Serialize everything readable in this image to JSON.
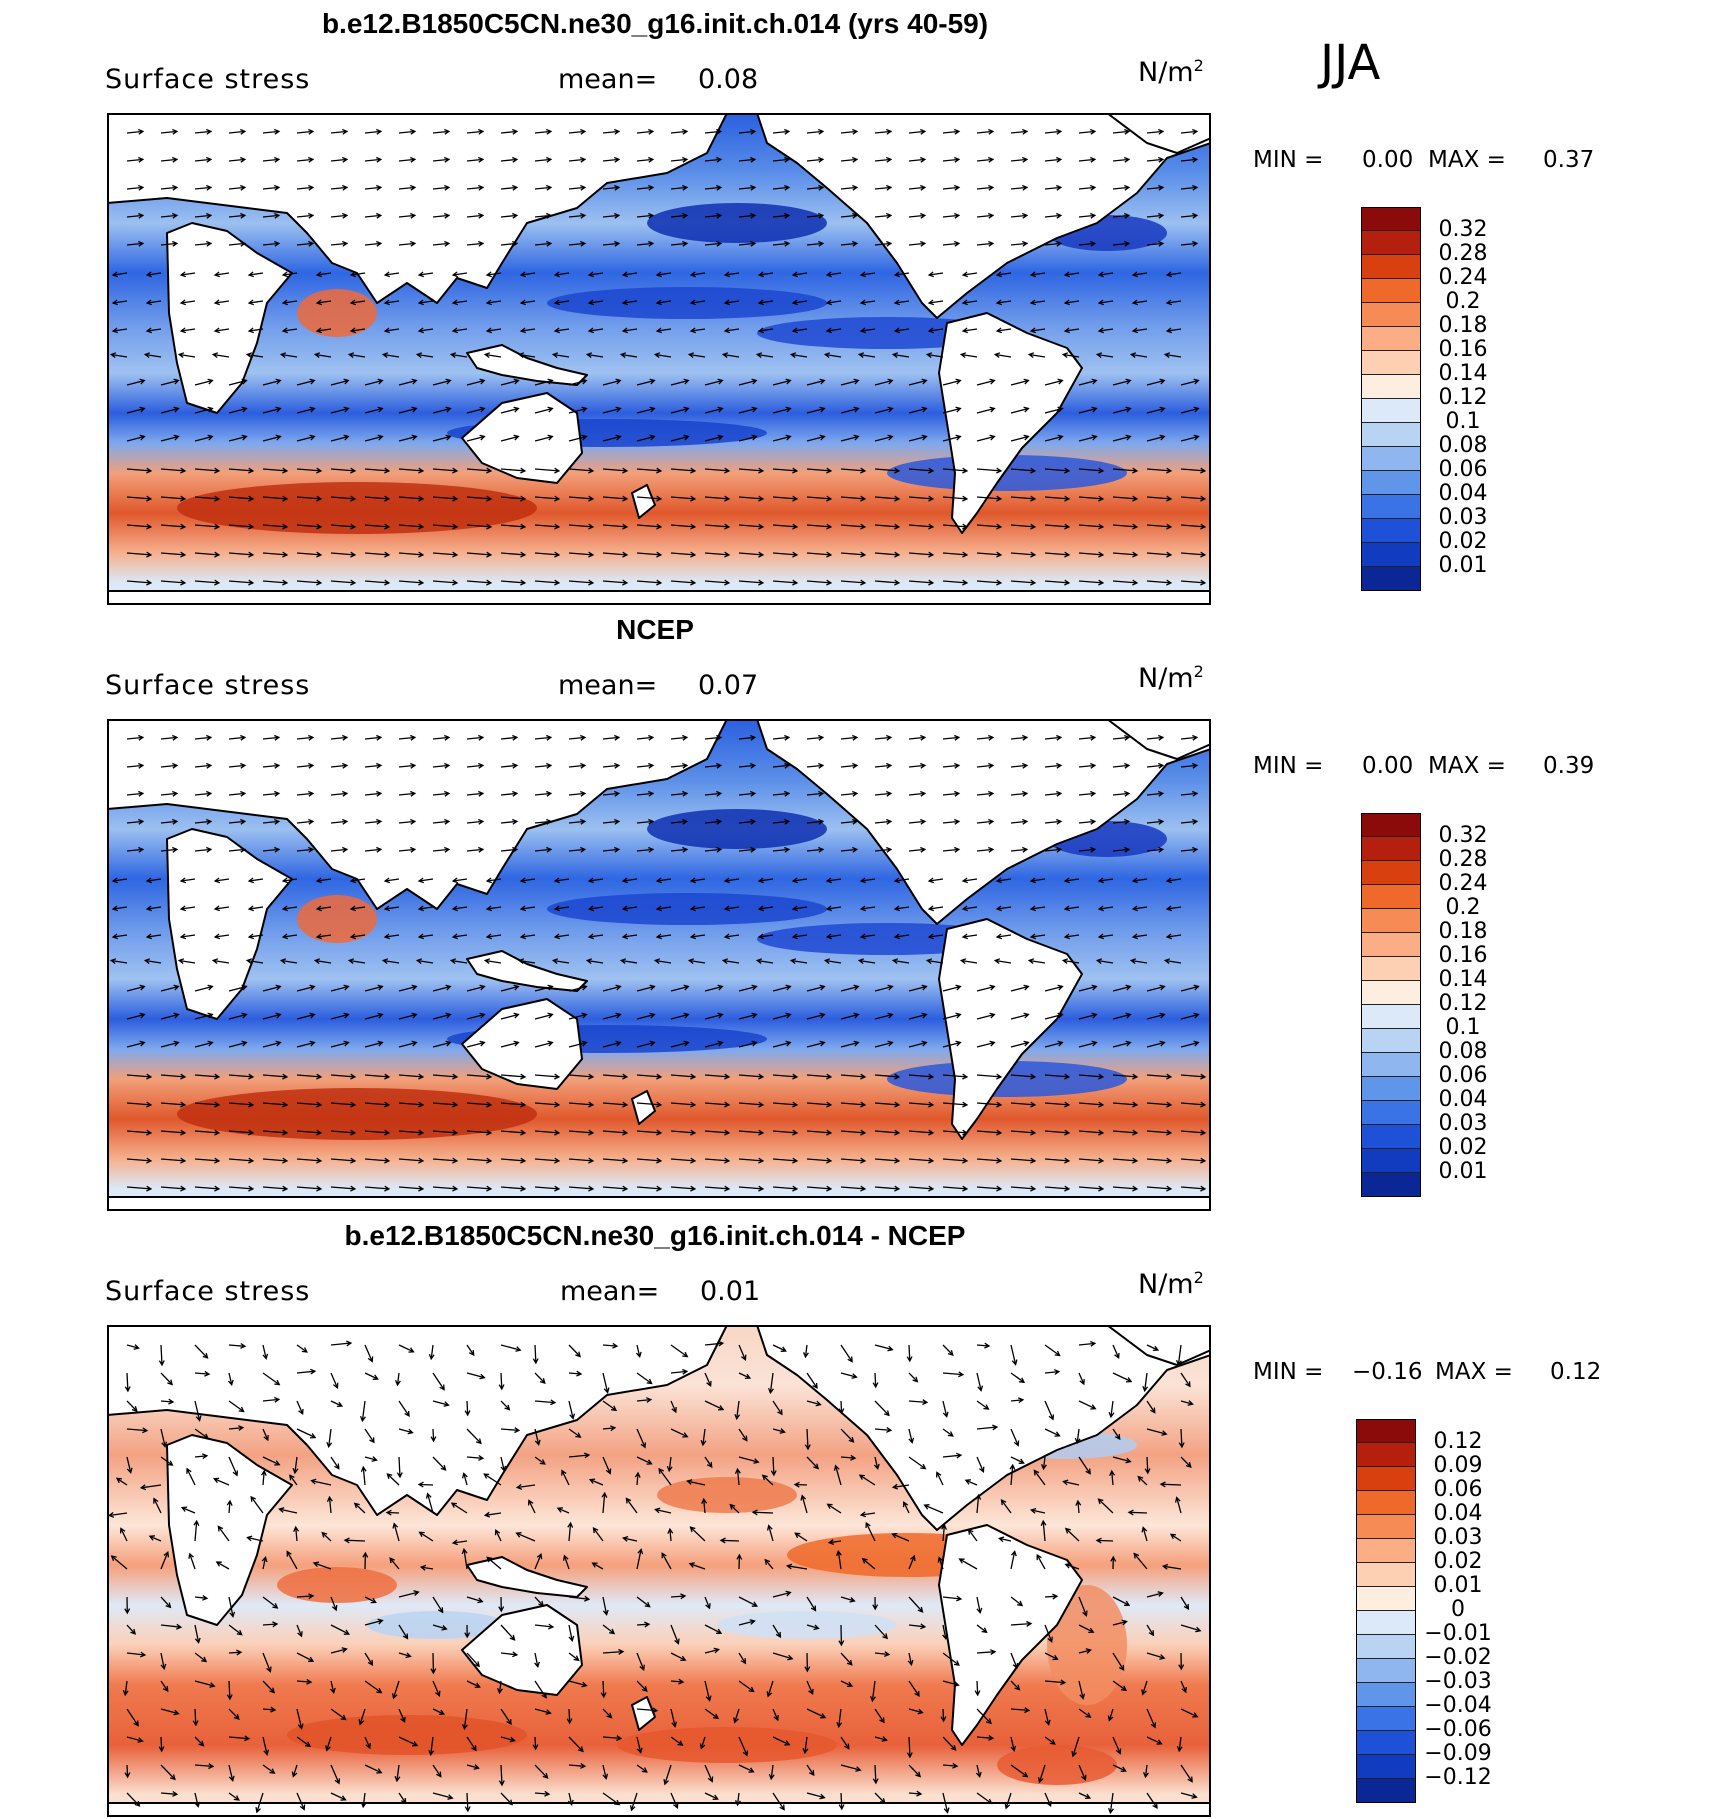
{
  "season": "JJA",
  "panels": [
    {
      "title": "b.e12.B1850C5CN.ne30_g16.init.ch.014 (yrs 40-59)",
      "variable": "Surface stress",
      "mean_label": "mean=",
      "mean_value": "0.08",
      "units": "N/m",
      "units_exp": "2",
      "min_label": "MIN =",
      "min_value": "0.00",
      "max_label": "MAX =",
      "max_value": "0.37",
      "palette": "sequential"
    },
    {
      "title": "NCEP",
      "variable": "Surface stress",
      "mean_label": "mean=",
      "mean_value": "0.07",
      "units": "N/m",
      "units_exp": "2",
      "min_label": "MIN =",
      "min_value": "0.00",
      "max_label": "MAX =",
      "max_value": "0.39",
      "palette": "sequential"
    },
    {
      "title": "b.e12.B1850C5CN.ne30_g16.init.ch.014 - NCEP",
      "variable": "Surface stress",
      "mean_label": "mean=",
      "mean_value": "0.01",
      "units": "N/m",
      "units_exp": "2",
      "min_label": "MIN =",
      "min_value": "−0.16",
      "max_label": "MAX =",
      "max_value": "0.12",
      "palette": "difference"
    }
  ],
  "colorbars": {
    "sequential": {
      "labels": [
        "0.32",
        "0.28",
        "0.24",
        "0.2",
        "0.18",
        "0.16",
        "0.14",
        "0.12",
        "0.1",
        "0.08",
        "0.06",
        "0.04",
        "0.03",
        "0.02",
        "0.01"
      ],
      "colors": [
        "#8b0a0a",
        "#b5200e",
        "#d8400f",
        "#ef6a2a",
        "#f68b55",
        "#fbad86",
        "#fdd0b4",
        "#fdeee0",
        "#dbe9f8",
        "#b9d3f3",
        "#8fb6ee",
        "#6096ea",
        "#3a73e6",
        "#1f50d8",
        "#123cc0",
        "#0b2796"
      ]
    },
    "difference": {
      "labels": [
        "0.12",
        "0.09",
        "0.06",
        "0.04",
        "0.03",
        "0.02",
        "0.01",
        "0",
        "−0.01",
        "−0.02",
        "−0.03",
        "−0.04",
        "−0.06",
        "−0.09",
        "−0.12"
      ],
      "colors": [
        "#8b0a0a",
        "#b5200e",
        "#d8400f",
        "#ef6a2a",
        "#f68b55",
        "#fbad86",
        "#fdd0b4",
        "#fdeee0",
        "#dbe9f8",
        "#b9d3f3",
        "#8fb6ee",
        "#6096ea",
        "#3a73e6",
        "#1f50d8",
        "#123cc0",
        "#0b2796"
      ]
    }
  }
}
